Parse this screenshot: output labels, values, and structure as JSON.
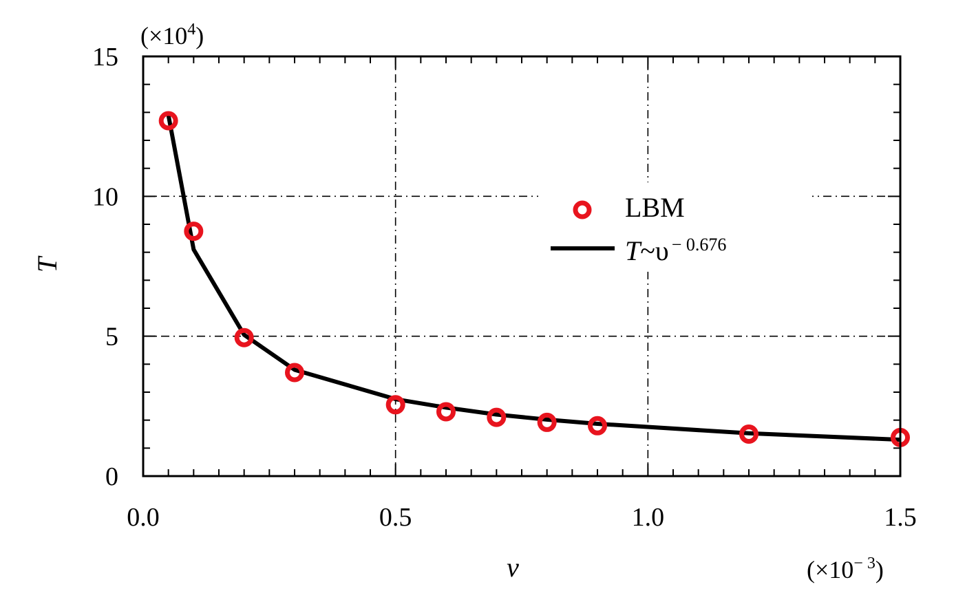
{
  "chart_data": {
    "type": "line",
    "xlabel": "v",
    "ylabel": "T",
    "x_multiplier": "(×10⁻³)",
    "y_multiplier": "(×10⁴)",
    "xlim": [
      0,
      1.5
    ],
    "ylim": [
      0,
      15
    ],
    "x_ticks": [
      0.0,
      0.5,
      1.0,
      1.5
    ],
    "x_tick_labels": [
      "0.0",
      "0.5",
      "1.0",
      "1.5"
    ],
    "y_ticks": [
      0,
      5,
      10,
      15
    ],
    "y_tick_labels": [
      "0",
      "5",
      "10",
      "15"
    ],
    "grid": "dash-dot at major ticks",
    "legend_position": "center-right",
    "series": [
      {
        "name": "LBM",
        "kind": "markers",
        "marker": "open circle",
        "color": "#e8141e",
        "x": [
          0.05,
          0.1,
          0.2,
          0.3,
          0.5,
          0.6,
          0.7,
          0.8,
          0.9,
          1.2,
          1.5
        ],
        "y": [
          12.7,
          8.75,
          4.95,
          3.7,
          2.55,
          2.3,
          2.1,
          1.92,
          1.8,
          1.5,
          1.38
        ]
      },
      {
        "name": "T~υ⁻⁰·⁶⁷⁶",
        "legend_base": "T",
        "legend_mid": "~υ",
        "legend_sup": "− 0.676",
        "kind": "line",
        "color": "#000000",
        "x": [
          0.05,
          0.1,
          0.2,
          0.3,
          0.5,
          0.6,
          0.7,
          0.8,
          0.9,
          1.2,
          1.5
        ],
        "y": [
          12.9,
          8.1,
          5.05,
          3.8,
          2.75,
          2.45,
          2.2,
          2.02,
          1.87,
          1.53,
          1.3
        ]
      }
    ]
  }
}
